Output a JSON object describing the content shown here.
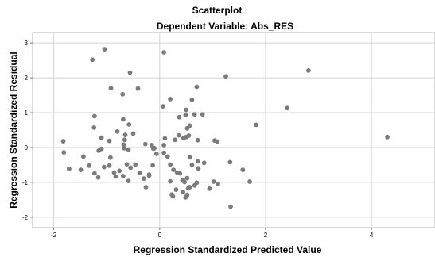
{
  "chart_data": {
    "type": "scatter",
    "title": "Scatterplot",
    "subtitle": "Dependent Variable: Abs_RES",
    "xlabel": "Regression Standardized Predicted Value",
    "ylabel": "Regression Standardized Residual",
    "xlim": [
      -2.4,
      5.2
    ],
    "ylim": [
      -2.3,
      3.3
    ],
    "xticks": [
      -2,
      0,
      2,
      4
    ],
    "yticks": [
      -2,
      -1,
      0,
      1,
      2,
      3
    ],
    "grid": true,
    "colors": {
      "point": "#7b7b7b",
      "grid": "#d3d3d3",
      "plot_border": "#b5b5b5",
      "background": "#ffffff"
    },
    "points": [
      [
        -1.27,
        2.52
      ],
      [
        -1.04,
        2.82
      ],
      [
        -0.56,
        2.15
      ],
      [
        0.08,
        2.73
      ],
      [
        -0.92,
        1.7
      ],
      [
        -0.41,
        1.69
      ],
      [
        0.61,
        1.37
      ],
      [
        0.7,
        1.74
      ],
      [
        1.25,
        2.04
      ],
      [
        2.81,
        2.21
      ],
      [
        2.41,
        1.13
      ],
      [
        -0.7,
        1.53
      ],
      [
        -1.23,
        0.9
      ],
      [
        -0.69,
        0.81
      ],
      [
        0.06,
        1.18
      ],
      [
        0.2,
        1.39
      ],
      [
        0.37,
        0.87
      ],
      [
        0.49,
        0.93
      ],
      [
        0.52,
        0.55
      ],
      [
        0.5,
        0.3
      ],
      [
        0.55,
        0.34
      ],
      [
        0.57,
        0.63
      ],
      [
        0.5,
        1.08
      ],
      [
        0.66,
        0.95
      ],
      [
        0.81,
        0.95
      ],
      [
        1.82,
        0.65
      ],
      [
        -1.24,
        0.57
      ],
      [
        -0.58,
        0.66
      ],
      [
        -0.8,
        0.46
      ],
      [
        -0.5,
        0.4
      ],
      [
        -0.65,
        0.36
      ],
      [
        -0.66,
        0.22
      ],
      [
        -1.1,
        0.28
      ],
      [
        -0.95,
        0.19
      ],
      [
        -1.82,
        0.18
      ],
      [
        -1.81,
        -0.14
      ],
      [
        -1.15,
        -0.09
      ],
      [
        -1.1,
        -0.04
      ],
      [
        -0.68,
        0.08
      ],
      [
        -0.67,
        -0.02
      ],
      [
        -0.59,
        -0.06
      ],
      [
        -0.27,
        0.1
      ],
      [
        -0.15,
        0.07
      ],
      [
        -0.12,
        -0.03
      ],
      [
        -0.1,
        -0.02
      ],
      [
        0.08,
        0.07
      ],
      [
        0.1,
        0.26
      ],
      [
        0.29,
        0.22
      ],
      [
        0.36,
        0.35
      ],
      [
        0.45,
        0.27
      ],
      [
        0.72,
        0.21
      ],
      [
        1.04,
        0.2
      ],
      [
        1.09,
        0.17
      ],
      [
        4.3,
        0.3
      ],
      [
        -1.33,
        -0.52
      ],
      [
        -1.44,
        -0.26
      ],
      [
        -1.05,
        -0.56
      ],
      [
        -0.95,
        -0.52
      ],
      [
        -0.93,
        -0.29
      ],
      [
        -0.86,
        -0.72
      ],
      [
        -0.76,
        -0.67
      ],
      [
        -0.62,
        -0.48
      ],
      [
        -0.55,
        -0.58
      ],
      [
        -0.46,
        -0.49
      ],
      [
        -0.38,
        -0.73
      ],
      [
        -0.13,
        -0.51
      ],
      [
        -0.2,
        -0.81
      ],
      [
        -0.06,
        -0.18
      ],
      [
        0.08,
        -0.15
      ],
      [
        0.15,
        -0.26
      ],
      [
        0.2,
        -0.49
      ],
      [
        0.26,
        -0.64
      ],
      [
        0.33,
        -0.72
      ],
      [
        0.38,
        -0.74
      ],
      [
        0.44,
        -0.93
      ],
      [
        0.47,
        -0.99
      ],
      [
        0.52,
        -0.88
      ],
      [
        0.57,
        -0.28
      ],
      [
        0.61,
        -0.5
      ],
      [
        0.54,
        -1.17
      ],
      [
        0.57,
        -1.14
      ],
      [
        0.72,
        -0.4
      ],
      [
        0.73,
        -0.6
      ],
      [
        0.84,
        -0.44
      ],
      [
        0.94,
        -1.18
      ],
      [
        1.02,
        -0.98
      ],
      [
        1.1,
        -1.04
      ],
      [
        1.33,
        -0.42
      ],
      [
        1.57,
        -0.64
      ],
      [
        1.7,
        -0.98
      ],
      [
        1.34,
        -1.7
      ],
      [
        -1.71,
        -0.61
      ],
      [
        -1.49,
        -0.64
      ],
      [
        -1.23,
        -0.74
      ],
      [
        -1.16,
        -0.86
      ],
      [
        -0.83,
        -0.83
      ],
      [
        -0.69,
        -0.82
      ],
      [
        -0.59,
        -0.96
      ],
      [
        -0.3,
        -0.89
      ],
      [
        -0.2,
        -0.78
      ],
      [
        0.2,
        -0.97
      ],
      [
        0.23,
        -1.35
      ],
      [
        0.25,
        -1.4
      ],
      [
        0.31,
        -1.21
      ],
      [
        0.43,
        -0.94
      ],
      [
        0.44,
        -1.28
      ],
      [
        0.49,
        -1.43
      ],
      [
        0.52,
        -1.36
      ],
      [
        0.66,
        -1.09
      ],
      [
        0.7,
        -1.01
      ],
      [
        -0.26,
        -1.14
      ]
    ]
  }
}
